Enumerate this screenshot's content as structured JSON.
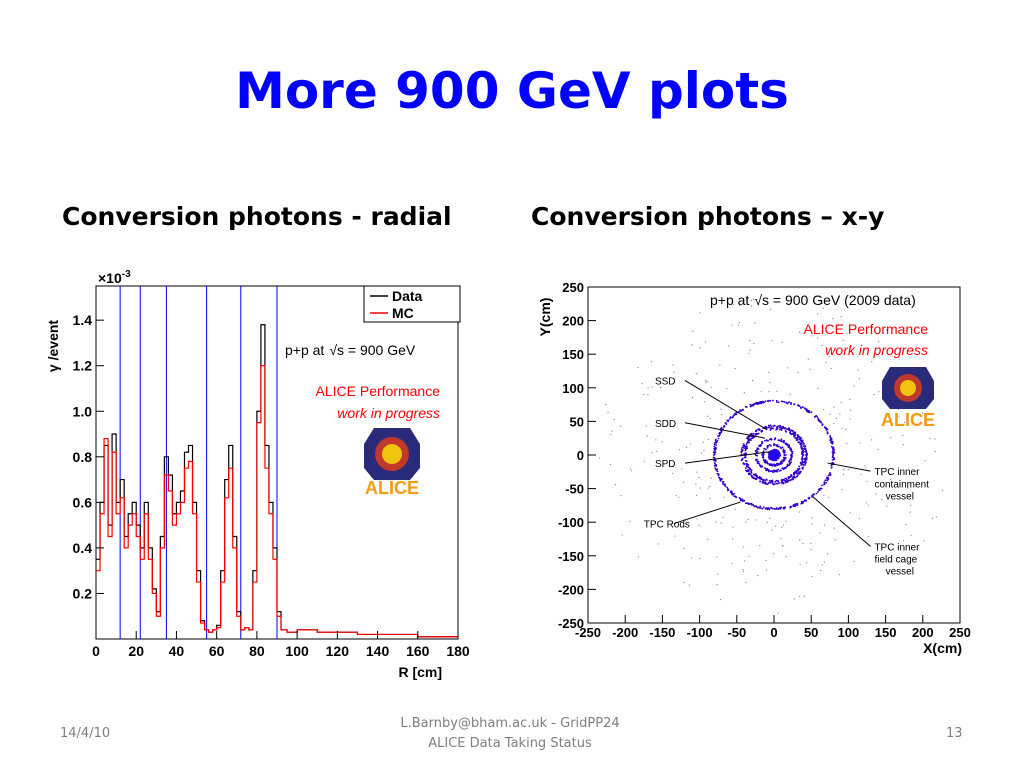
{
  "slide": {
    "title": "More 900 GeV plots",
    "left_heading": "Conversion photons - radial",
    "right_heading": "Conversion photons – x-y",
    "footer_date": "14/4/10",
    "footer_line1": "L.Barnby@bham.ac.uk - GridPP24",
    "footer_line2": "ALICE Data Taking Status",
    "page_number": "13"
  },
  "colors": {
    "title": "#0000ff",
    "data_line": "#000000",
    "mc_line": "#ff0000",
    "marker_lines": "#0000ff",
    "alice_text": "#ff0000",
    "scatter": "#3300cc"
  },
  "chart_data": [
    {
      "type": "line",
      "xlabel": "R [cm]",
      "ylabel": "γ /event",
      "y_multiplier": "×10",
      "y_multiplier_exp": "-3",
      "xlim": [
        0,
        180
      ],
      "ylim": [
        0,
        1.55
      ],
      "xticks": [
        0,
        20,
        40,
        60,
        80,
        100,
        120,
        140,
        160,
        180
      ],
      "yticks": [
        0.2,
        0.4,
        0.6,
        0.8,
        1.0,
        1.2,
        1.4
      ],
      "ytick_labels": [
        "0.2",
        "0.4",
        "0.6",
        "0.8",
        "1.0",
        "1.2",
        "1.4"
      ],
      "vertical_lines": [
        12,
        22,
        35,
        55,
        72,
        90
      ],
      "annotation_line1": "p+p at",
      "annotation_line1_tail": "s = 900 GeV",
      "annotation_line2": "ALICE Performance",
      "annotation_line3": "work in progress",
      "logo_text": "ALICE",
      "legend_position": "top-right",
      "series": [
        {
          "name": "Data",
          "x": [
            0,
            2,
            4,
            6,
            8,
            10,
            12,
            14,
            16,
            18,
            20,
            22,
            24,
            26,
            28,
            30,
            32,
            34,
            36,
            38,
            40,
            42,
            44,
            46,
            48,
            50,
            52,
            54,
            56,
            58,
            60,
            62,
            64,
            66,
            68,
            70,
            72,
            74,
            76,
            78,
            80,
            82,
            84,
            86,
            88,
            90,
            92,
            95,
            100,
            110,
            120,
            130,
            140,
            150,
            160,
            170,
            180
          ],
          "values": [
            0.35,
            0.6,
            0.85,
            0.5,
            0.9,
            0.6,
            0.7,
            0.45,
            0.55,
            0.6,
            0.5,
            0.4,
            0.6,
            0.4,
            0.22,
            0.12,
            0.45,
            0.8,
            0.72,
            0.55,
            0.6,
            0.65,
            0.82,
            0.85,
            0.6,
            0.3,
            0.08,
            0.04,
            0.03,
            0.04,
            0.06,
            0.3,
            0.7,
            0.85,
            0.45,
            0.12,
            0.04,
            0.05,
            0.04,
            0.3,
            1.0,
            1.38,
            0.85,
            0.6,
            0.4,
            0.12,
            0.04,
            0.03,
            0.04,
            0.03,
            0.03,
            0.02,
            0.02,
            0.02,
            0.01,
            0.01,
            0.01
          ]
        },
        {
          "name": "MC",
          "x": [
            0,
            2,
            4,
            6,
            8,
            10,
            12,
            14,
            16,
            18,
            20,
            22,
            24,
            26,
            28,
            30,
            32,
            34,
            36,
            38,
            40,
            42,
            44,
            46,
            48,
            50,
            52,
            54,
            56,
            58,
            60,
            62,
            64,
            66,
            68,
            70,
            72,
            74,
            76,
            78,
            80,
            82,
            84,
            86,
            88,
            90,
            92,
            95,
            100,
            110,
            120,
            130,
            140,
            150,
            160,
            170,
            180
          ],
          "values": [
            0.3,
            0.55,
            0.88,
            0.45,
            0.82,
            0.55,
            0.62,
            0.4,
            0.5,
            0.55,
            0.45,
            0.35,
            0.55,
            0.35,
            0.2,
            0.1,
            0.4,
            0.72,
            0.65,
            0.5,
            0.55,
            0.6,
            0.75,
            0.78,
            0.55,
            0.25,
            0.07,
            0.04,
            0.03,
            0.04,
            0.05,
            0.25,
            0.62,
            0.75,
            0.4,
            0.1,
            0.04,
            0.05,
            0.04,
            0.25,
            0.95,
            1.2,
            0.75,
            0.55,
            0.35,
            0.1,
            0.04,
            0.03,
            0.04,
            0.03,
            0.03,
            0.02,
            0.02,
            0.02,
            0.01,
            0.01,
            0.01
          ]
        }
      ]
    },
    {
      "type": "scatter",
      "xlabel": "X(cm)",
      "ylabel": "Y(cm)",
      "xlim": [
        -250,
        250
      ],
      "ylim": [
        -250,
        250
      ],
      "xticks": [
        -250,
        -200,
        -150,
        -100,
        -50,
        0,
        50,
        100,
        150,
        200,
        250
      ],
      "yticks": [
        -250,
        -200,
        -150,
        -100,
        -50,
        0,
        50,
        100,
        150,
        200,
        250
      ],
      "annotation_line1": "p+p at",
      "annotation_line1_tail": "s = 900 GeV (2009 data)",
      "annotation_line2": "ALICE Performance",
      "annotation_line3": "work in progress",
      "logo_text": "ALICE",
      "rings_radius_cm": [
        4,
        7,
        15,
        24,
        39,
        43,
        80
      ],
      "labels": [
        {
          "text": "SSD",
          "x": -160,
          "y": 105,
          "tx": -10,
          "ty": 38
        },
        {
          "text": "SDD",
          "x": -160,
          "y": 42,
          "tx": -12,
          "ty": 25
        },
        {
          "text": "SPD",
          "x": -160,
          "y": -18,
          "tx": -5,
          "ty": 5
        },
        {
          "text": "TPC Rods",
          "x": -175,
          "y": -108,
          "tx": -45,
          "ty": -70
        },
        {
          "text": "TPC inner",
          "x": 135,
          "y": -30,
          "tx": 72,
          "ty": -12
        },
        {
          "text": "containment",
          "x": 135,
          "y": -48
        },
        {
          "text": "vessel",
          "x": 150,
          "y": -66
        },
        {
          "text": "TPC inner",
          "x": 135,
          "y": -142,
          "tx": 52,
          "ty": -62
        },
        {
          "text": "field cage",
          "x": 135,
          "y": -160
        },
        {
          "text": "vessel",
          "x": 150,
          "y": -178
        }
      ]
    }
  ]
}
